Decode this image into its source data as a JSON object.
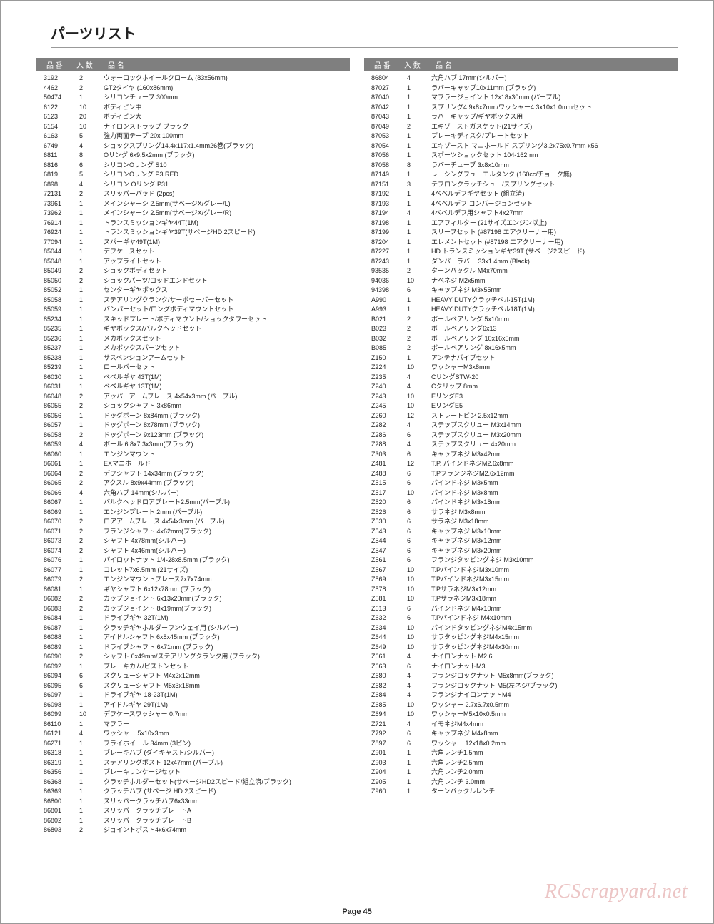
{
  "title": "パーツリスト",
  "page_label": "Page 45",
  "watermark": "RCScrapyard.net",
  "header": {
    "c1": "品 番",
    "c2": "入 数",
    "c3": "品 名"
  },
  "left": [
    [
      "3192",
      "2",
      "ウォーロックホイールクローム (83x56mm)"
    ],
    [
      "4462",
      "2",
      "GT2タイヤ (160x86mm)"
    ],
    [
      "50474",
      "1",
      "シリコンチューブ 300mm"
    ],
    [
      "6122",
      "10",
      "ボディピン中"
    ],
    [
      "6123",
      "20",
      "ボディピン大"
    ],
    [
      "6154",
      "10",
      "ナイロンストラップ ブラック"
    ],
    [
      "6163",
      "5",
      "強力両面テープ 20x 100mm"
    ],
    [
      "6749",
      "4",
      "ショックスプリング14.4x117x1.4mm26巻(ブラック)"
    ],
    [
      "6811",
      "8",
      "Oリング 6x9.5x2mm (ブラック)"
    ],
    [
      "6816",
      "6",
      "シリコンOリング S10"
    ],
    [
      "6819",
      "5",
      "シリコンOリング P3 RED"
    ],
    [
      "6898",
      "4",
      "シリコン Oリング P31"
    ],
    [
      "72131",
      "2",
      "スリッパーパッド (2pcs)"
    ],
    [
      "73961",
      "1",
      "メインシャーシ 2.5mm(サベージX/グレー/L)"
    ],
    [
      "73962",
      "1",
      "メインシャーシ 2.5mm(サベージX/グレー/R)"
    ],
    [
      "76914",
      "1",
      "トランスミッションギヤ44T(1M)"
    ],
    [
      "76924",
      "1",
      "トランスミッションギヤ39T(サベージHD 2スピード)"
    ],
    [
      "77094",
      "1",
      "スパーギヤ49T(1M)"
    ],
    [
      "85044",
      "1",
      "デフケースセット"
    ],
    [
      "85048",
      "1",
      "アップライトセット"
    ],
    [
      "85049",
      "2",
      "ショックボディセット"
    ],
    [
      "85050",
      "2",
      "ショックパーツ/ロッドエンドセット"
    ],
    [
      "85052",
      "1",
      "センターギヤボックス"
    ],
    [
      "85058",
      "1",
      "ステアリングクランク/サーボセーバーセット"
    ],
    [
      "85059",
      "1",
      "バンパーセット/ロングボディマウントセット"
    ],
    [
      "85234",
      "1",
      "スキッドプレート/ボディマウント/ショックタワーセット"
    ],
    [
      "85235",
      "1",
      "ギヤボックス/バルクヘッドセット"
    ],
    [
      "85236",
      "1",
      "メカボックスセット"
    ],
    [
      "85237",
      "1",
      "メカボックスパーツセット"
    ],
    [
      "85238",
      "1",
      "サスペンションアームセット"
    ],
    [
      "85239",
      "1",
      "ロールバーセット"
    ],
    [
      "86030",
      "1",
      "ベベルギヤ 43T(1M)"
    ],
    [
      "86031",
      "1",
      "ベベルギヤ 13T(1M)"
    ],
    [
      "86048",
      "2",
      "アッパーアームブレース 4x54x3mm (パープル)"
    ],
    [
      "86055",
      "2",
      "ショックシャフト 3x86mm"
    ],
    [
      "86056",
      "1",
      "ドッグボーン 8x84mm (ブラック)"
    ],
    [
      "86057",
      "1",
      "ドッグボーン 8x78mm (ブラック)"
    ],
    [
      "86058",
      "2",
      "ドッグボーン 9x123mm (ブラック)"
    ],
    [
      "86059",
      "4",
      "ボール 6.8x7.3x3mm(ブラック)"
    ],
    [
      "86060",
      "1",
      "エンジンマウント"
    ],
    [
      "86061",
      "1",
      "EXマニホールド"
    ],
    [
      "86064",
      "2",
      "デフシャフト 14x34mm (ブラック)"
    ],
    [
      "86065",
      "2",
      "アクスル 8x9x44mm (ブラック)"
    ],
    [
      "86066",
      "4",
      "六角ハブ 14mm(シルバー)"
    ],
    [
      "86067",
      "1",
      "バルクヘッドロアプレート2.5mm(パープル)"
    ],
    [
      "86069",
      "1",
      "エンジンプレート 2mm (パープル)"
    ],
    [
      "86070",
      "2",
      "ロアアームブレース 4x54x3mm (パープル)"
    ],
    [
      "86071",
      "2",
      "フランジシャフト 4x62mm(ブラック)"
    ],
    [
      "86073",
      "2",
      "シャフト 4x78mm(シルバー)"
    ],
    [
      "86074",
      "2",
      "シャフト 4x46mm(シルバー)"
    ],
    [
      "86076",
      "1",
      "パイロットナット 1/4-28x8.5mm (ブラック)"
    ],
    [
      "86077",
      "1",
      "コレット7x6.5mm (21サイズ)"
    ],
    [
      "86079",
      "2",
      "エンジンマウントブレース7x7x74mm"
    ],
    [
      "86081",
      "1",
      "ギヤシャフト 6x12x78mm (ブラック)"
    ],
    [
      "86082",
      "2",
      "カップジョイント 6x13x20mm(ブラック)"
    ],
    [
      "86083",
      "2",
      "カップジョイント 8x19mm(ブラック)"
    ],
    [
      "86084",
      "1",
      "ドライブギヤ 32T(1M)"
    ],
    [
      "86087",
      "1",
      "クラッチギヤホルダーワンウェイ用 (シルバー)"
    ],
    [
      "86088",
      "1",
      "アイドルシャフト 6x8x45mm (ブラック)"
    ],
    [
      "86089",
      "1",
      "ドライブシャフト 6x71mm (ブラック)"
    ],
    [
      "86090",
      "2",
      "シャフト 6x49mm/ステアリングクランク用 (ブラック)"
    ],
    [
      "86092",
      "1",
      "ブレーキカム/ピストンセット"
    ],
    [
      "86094",
      "6",
      "スクリューシャフト M4x2x12mm"
    ],
    [
      "86095",
      "6",
      "スクリューシャフト M5x3x18mm"
    ],
    [
      "86097",
      "1",
      "ドライブギヤ 18-23T(1M)"
    ],
    [
      "86098",
      "1",
      "アイドルギヤ 29T(1M)"
    ],
    [
      "86099",
      "10",
      "デフケースワッシャー 0.7mm"
    ],
    [
      "86110",
      "1",
      "マフラー"
    ],
    [
      "86121",
      "4",
      "ワッシャー 5x10x3mm"
    ],
    [
      "86271",
      "1",
      "フライホイール 34mm (3ピン)"
    ],
    [
      "86318",
      "1",
      "ブレーキハブ (ダイキャスト/シルバー)"
    ],
    [
      "86319",
      "1",
      "ステアリングポスト 12x47mm (パープル)"
    ],
    [
      "86356",
      "1",
      "ブレーキリンケージセット"
    ],
    [
      "86368",
      "1",
      "クラッチホルダーセット(サベージHD2スピード/組立済/ブラック)"
    ],
    [
      "86369",
      "1",
      "クラッチハブ (サベージ HD 2スピード)"
    ],
    [
      "86800",
      "1",
      "スリッパークラッチハブ6x33mm"
    ],
    [
      "86801",
      "1",
      "スリッパークラッチプレートA"
    ],
    [
      "86802",
      "1",
      "スリッパークラッチプレートB"
    ],
    [
      "86803",
      "2",
      "ジョイントポスト4x6x74mm"
    ]
  ],
  "right": [
    [
      "86804",
      "4",
      "六角ハブ 17mm(シルバー)"
    ],
    [
      "87027",
      "1",
      "ラバーキャップ10x11mm (ブラック)"
    ],
    [
      "87040",
      "1",
      "マフラージョイント 12x18x30mm (パープル)"
    ],
    [
      "87042",
      "1",
      "スプリング4.9x8x7mm/ワッシャー4.3x10x1.0mmセット"
    ],
    [
      "87043",
      "1",
      "ラバーキャップ/ギヤボックス用"
    ],
    [
      "87049",
      "2",
      "エキゾーストガスケット(21サイズ)"
    ],
    [
      "87053",
      "1",
      "ブレーキディスク/プレートセット"
    ],
    [
      "87054",
      "1",
      "エキゾースト マニホールド スプリング3.2x75x0.7mm x56"
    ],
    [
      "87056",
      "1",
      "スポーツショックセット 104-162mm"
    ],
    [
      "87058",
      "8",
      "ラバーチューブ 3x8x10mm"
    ],
    [
      "87149",
      "1",
      "レーシングフューエルタンク (160cc/チョーク無)"
    ],
    [
      "87151",
      "3",
      "テフロンクラッチシュー/スプリングセット"
    ],
    [
      "87192",
      "1",
      "4ベベルデフギヤセット (組立済)"
    ],
    [
      "87193",
      "1",
      "4ベベルデフ コンバージョンセット"
    ],
    [
      "87194",
      "4",
      "4ベベルデフ用シャフト4x27mm"
    ],
    [
      "87198",
      "1",
      "エアフィルター (21サイズエンジン以上)"
    ],
    [
      "87199",
      "1",
      "スリーブセット (#87198 エアクリーナー用)"
    ],
    [
      "87204",
      "1",
      "エレメントセット (#87198 エアクリーナー用)"
    ],
    [
      "87227",
      "1",
      "HD トランスミッションギヤ39T (サベージ2スピード)"
    ],
    [
      "87243",
      "1",
      "ダンパーラバー 33x1.4mm (Black)"
    ],
    [
      "93535",
      "2",
      "ターンバックル M4x70mm"
    ],
    [
      "94036",
      "10",
      "ナベネジ M2x5mm"
    ],
    [
      "94398",
      "6",
      "キャップネジ M3x55mm"
    ],
    [
      "A990",
      "1",
      "HEAVY DUTYクラッチベル15T(1M)"
    ],
    [
      "A993",
      "1",
      "HEAVY DUTYクラッチベル18T(1M)"
    ],
    [
      "B021",
      "2",
      "ボールベアリング 5x10mm"
    ],
    [
      "B023",
      "2",
      "ボールベアリング6x13"
    ],
    [
      "B032",
      "2",
      "ボールベアリング 10x16x5mm"
    ],
    [
      "B085",
      "2",
      "ボールベアリング 8x16x5mm"
    ],
    [
      "Z150",
      "1",
      "アンテナパイプセット"
    ],
    [
      "Z224",
      "10",
      "ワッシャーM3x8mm"
    ],
    [
      "Z235",
      "4",
      "CリングSTW-20"
    ],
    [
      "Z240",
      "4",
      "Cクリップ 8mm"
    ],
    [
      "Z243",
      "10",
      "EリングE3"
    ],
    [
      "Z245",
      "10",
      "EリングE5"
    ],
    [
      "Z260",
      "12",
      "ストレートピン 2.5x12mm"
    ],
    [
      "Z282",
      "4",
      "ステップスクリュー M3x14mm"
    ],
    [
      "Z286",
      "6",
      "ステップスクリュー M3x20mm"
    ],
    [
      "Z288",
      "4",
      "ステップスクリュー 4x20mm"
    ],
    [
      "Z303",
      "6",
      "キャップネジ M3x42mm"
    ],
    [
      "Z481",
      "12",
      "T.P. バインドネジM2.6x8mm"
    ],
    [
      "Z488",
      "6",
      "T.PフランジネジM2.6x12mm"
    ],
    [
      "Z515",
      "6",
      "バインドネジ M3x5mm"
    ],
    [
      "Z517",
      "10",
      "バインドネジ M3x8mm"
    ],
    [
      "Z520",
      "6",
      "バインドネジ M3x18mm"
    ],
    [
      "Z526",
      "6",
      "サラネジ M3x8mm"
    ],
    [
      "Z530",
      "6",
      "サラネジ M3x18mm"
    ],
    [
      "Z543",
      "6",
      "キャップネジ M3x10mm"
    ],
    [
      "Z544",
      "6",
      "キャップネジ M3x12mm"
    ],
    [
      "Z547",
      "6",
      "キャップネジ M3x20mm"
    ],
    [
      "Z561",
      "6",
      "フランジタッピングネジ M3x10mm"
    ],
    [
      "Z567",
      "10",
      "T.PバインドネジM3x10mm"
    ],
    [
      "Z569",
      "10",
      "T.PバインドネジM3x15mm"
    ],
    [
      "Z578",
      "10",
      "T.PサラネジM3x12mm"
    ],
    [
      "Z581",
      "10",
      "T.PサラネジM3x18mm"
    ],
    [
      "Z613",
      "6",
      "バインドネジ M4x10mm"
    ],
    [
      "Z632",
      "6",
      "T.Pバインドネジ M4x10mm"
    ],
    [
      "Z634",
      "10",
      "バインドタッピングネジM4x15mm"
    ],
    [
      "Z644",
      "10",
      "サラタッピングネジM4x15mm"
    ],
    [
      "Z649",
      "10",
      "サラタッピングネジM4x30mm"
    ],
    [
      "Z661",
      "4",
      "ナイロンナット M2.6"
    ],
    [
      "Z663",
      "6",
      "ナイロンナットM3"
    ],
    [
      "Z680",
      "4",
      "フランジロックナット M5x8mm(ブラック)"
    ],
    [
      "Z682",
      "4",
      "フランジロックナット M5(左ネジ/ブラック)"
    ],
    [
      "Z684",
      "4",
      "フランジナイロンナットM4"
    ],
    [
      "Z685",
      "10",
      "ワッシャー 2.7x6.7x0.5mm"
    ],
    [
      "Z694",
      "10",
      "ワッシャーM5x10x0.5mm"
    ],
    [
      "Z721",
      "4",
      "イモネジM4x4mm"
    ],
    [
      "Z792",
      "6",
      "キャップネジ M4x8mm"
    ],
    [
      "Z897",
      "6",
      "ワッシャー 12x18x0.2mm"
    ],
    [
      "Z901",
      "1",
      "六角レンチ1.5mm"
    ],
    [
      "Z903",
      "1",
      "六角レンチ2.5mm"
    ],
    [
      "Z904",
      "1",
      "六角レンチ2.0mm"
    ],
    [
      "Z905",
      "1",
      "六角レンチ 3.0mm"
    ],
    [
      "Z960",
      "1",
      "ターンバックルレンチ"
    ]
  ]
}
